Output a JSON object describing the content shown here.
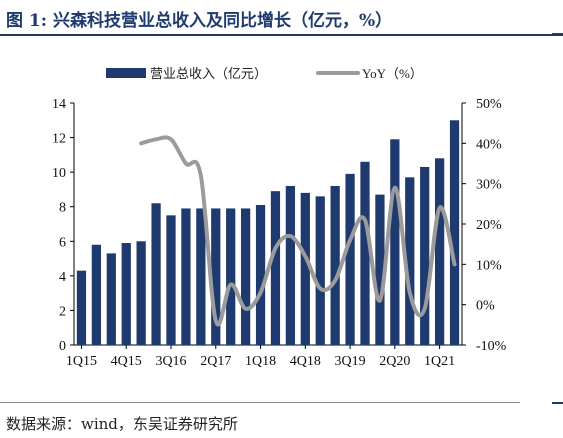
{
  "header": {
    "title": "图 1:  兴森科技营业总收入及同比增长（亿元，%）"
  },
  "footer": {
    "source": "数据来源：wind，东吴证券研究所"
  },
  "chart_data": {
    "type": "bar",
    "categories": [
      "1Q15",
      "2Q15",
      "3Q15",
      "4Q15",
      "1Q16",
      "2Q16",
      "3Q16",
      "4Q16",
      "1Q17",
      "2Q17",
      "3Q17",
      "4Q17",
      "1Q18",
      "2Q18",
      "3Q18",
      "4Q18",
      "1Q19",
      "2Q19",
      "3Q19",
      "4Q19",
      "1Q20",
      "2Q20",
      "3Q20",
      "4Q20",
      "1Q21",
      "2Q21"
    ],
    "x_tick_labels": [
      "1Q15",
      "4Q15",
      "3Q16",
      "2Q17",
      "1Q18",
      "4Q18",
      "3Q19",
      "2Q20",
      "1Q21"
    ],
    "series": [
      {
        "name": "营业总收入（亿元）",
        "type": "bar",
        "axis": "left",
        "color": "#1f3a6e",
        "values": [
          4.3,
          5.8,
          5.3,
          5.9,
          6.0,
          8.2,
          7.5,
          7.9,
          7.9,
          7.9,
          7.9,
          7.9,
          8.1,
          8.9,
          9.2,
          8.8,
          8.6,
          9.2,
          9.9,
          10.6,
          8.7,
          11.9,
          9.7,
          10.3,
          10.8,
          13.0
        ]
      },
      {
        "name": "YoY（%）",
        "type": "line",
        "axis": "right",
        "color": "#9b9b9b",
        "values": [
          null,
          null,
          null,
          null,
          40,
          41,
          41,
          35,
          32,
          -4,
          5,
          -1,
          3,
          14,
          17,
          12,
          4,
          6,
          16,
          21,
          1,
          29,
          3,
          -1,
          24,
          10
        ]
      }
    ],
    "left_axis": {
      "ylim": [
        0,
        14
      ],
      "ticks": [
        "0",
        "2",
        "4",
        "6",
        "8",
        "10",
        "12",
        "14"
      ]
    },
    "right_axis": {
      "ylim": [
        -10,
        50
      ],
      "ticks": [
        "-10%",
        "0%",
        "10%",
        "20%",
        "30%",
        "40%",
        "50%"
      ]
    },
    "legend": {
      "position": "top",
      "bar_label": "营业总收入（亿元）",
      "line_label": "YoY（%）"
    },
    "grid": false
  }
}
